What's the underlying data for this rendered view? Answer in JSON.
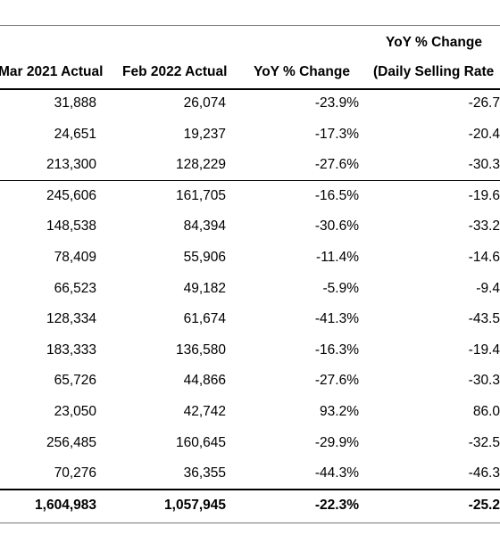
{
  "header": {
    "top": "YoY % Change",
    "columns": [
      "Mar 2021 Actual",
      "Feb 2022 Actual",
      "YoY % Change",
      "(Daily Selling Rate"
    ]
  },
  "rows": [
    [
      "31,888",
      "26,074",
      "-23.9%",
      "-26.7"
    ],
    [
      "24,651",
      "19,237",
      "-17.3%",
      "-20.4"
    ],
    [
      "213,300",
      "128,229",
      "-27.6%",
      "-30.3"
    ],
    [
      "245,606",
      "161,705",
      "-16.5%",
      "-19.6"
    ],
    [
      "148,538",
      "84,394",
      "-30.6%",
      "-33.2"
    ],
    [
      "78,409",
      "55,906",
      "-11.4%",
      "-14.6"
    ],
    [
      "66,523",
      "49,182",
      "-5.9%",
      "-9.4"
    ],
    [
      "128,334",
      "61,674",
      "-41.3%",
      "-43.5"
    ],
    [
      "183,333",
      "136,580",
      "-16.3%",
      "-19.4"
    ],
    [
      "65,726",
      "44,866",
      "-27.6%",
      "-30.3"
    ],
    [
      "23,050",
      "42,742",
      "93.2%",
      "86.0"
    ],
    [
      "256,485",
      "160,645",
      "-29.9%",
      "-32.5"
    ],
    [
      "70,276",
      "36,355",
      "-44.3%",
      "-46.3"
    ]
  ],
  "total": [
    "1,604,983",
    "1,057,945",
    "-22.3%",
    "-25.2"
  ]
}
